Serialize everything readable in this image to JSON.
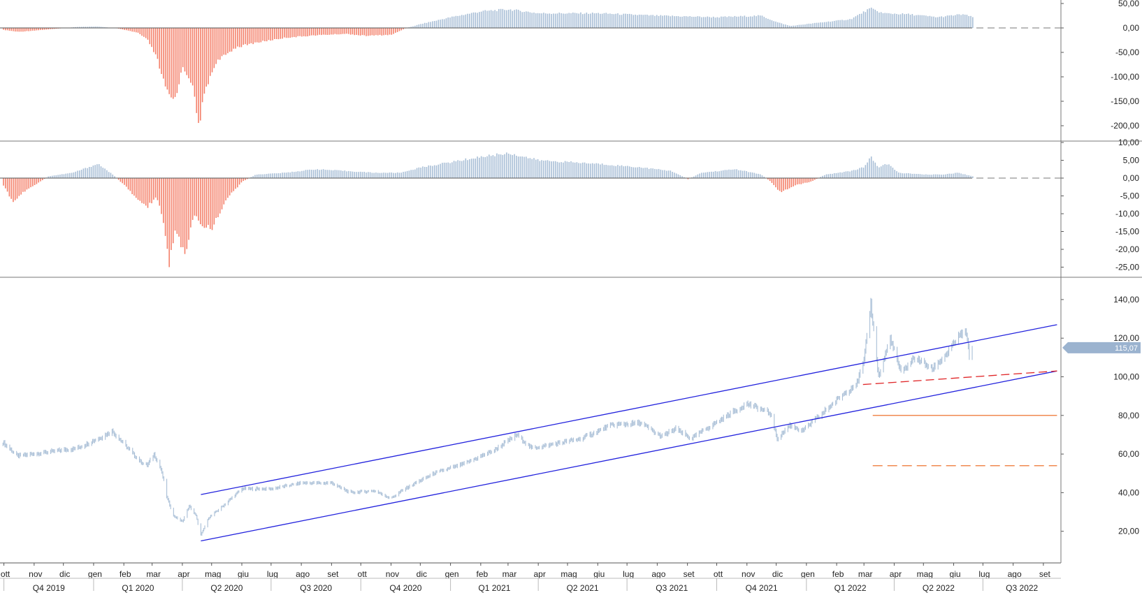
{
  "chart_data": [
    {
      "type": "bar",
      "panel": "indicator-1",
      "y_ticks": [
        "50,00",
        "0,00",
        "-50,00",
        "-100,00",
        "-150,00",
        "-200,00"
      ],
      "ylim": [
        -205,
        55
      ],
      "grid": false,
      "colors": {
        "positive": "#a8bed6",
        "negative": "#f4806a",
        "zero_line": "#555555"
      },
      "keypoints": [
        [
          "2019-09-30",
          -4
        ],
        [
          "2019-10-15",
          -8
        ],
        [
          "2019-11-15",
          -3
        ],
        [
          "2019-12-15",
          2
        ],
        [
          "2020-01-05",
          3
        ],
        [
          "2020-01-25",
          -1
        ],
        [
          "2020-02-15",
          -10
        ],
        [
          "2020-02-25",
          -25
        ],
        [
          "2020-03-05",
          -60
        ],
        [
          "2020-03-15",
          -130
        ],
        [
          "2020-03-23",
          -150
        ],
        [
          "2020-04-01",
          -80
        ],
        [
          "2020-04-10",
          -110
        ],
        [
          "2020-04-17",
          -200
        ],
        [
          "2020-04-25",
          -120
        ],
        [
          "2020-05-05",
          -70
        ],
        [
          "2020-05-25",
          -40
        ],
        [
          "2020-06-15",
          -30
        ],
        [
          "2020-07-15",
          -20
        ],
        [
          "2020-08-15",
          -15
        ],
        [
          "2020-09-15",
          -12
        ],
        [
          "2020-10-05",
          -16
        ],
        [
          "2020-11-01",
          -14
        ],
        [
          "2020-11-15",
          -1
        ],
        [
          "2020-12-01",
          8
        ],
        [
          "2021-01-01",
          22
        ],
        [
          "2021-02-01",
          34
        ],
        [
          "2021-03-01",
          38
        ],
        [
          "2021-04-01",
          30
        ],
        [
          "2021-06-01",
          30
        ],
        [
          "2021-08-01",
          25
        ],
        [
          "2021-10-01",
          22
        ],
        [
          "2021-11-15",
          25
        ],
        [
          "2021-12-01",
          12
        ],
        [
          "2021-12-15",
          4
        ],
        [
          "2022-01-10",
          10
        ],
        [
          "2022-02-15",
          18
        ],
        [
          "2022-03-07",
          40
        ],
        [
          "2022-03-20",
          30
        ],
        [
          "2022-04-15",
          28
        ],
        [
          "2022-05-15",
          22
        ],
        [
          "2022-06-10",
          28
        ],
        [
          "2022-06-20",
          22
        ]
      ],
      "last_date": "2022-06-20"
    },
    {
      "type": "bar",
      "panel": "indicator-2",
      "y_ticks": [
        "10,00",
        "5,00",
        "0,00",
        "-5,00",
        "-10,00",
        "-15,00",
        "-20,00",
        "-25,00"
      ],
      "ylim": [
        -26,
        11
      ],
      "grid": false,
      "colors": {
        "positive": "#a8bed6",
        "negative": "#f4806a",
        "zero_line": "#555555"
      },
      "keypoints": [
        [
          "2019-09-30",
          -2
        ],
        [
          "2019-10-10",
          -7
        ],
        [
          "2019-10-20",
          -4
        ],
        [
          "2019-11-01",
          -2
        ],
        [
          "2019-11-15",
          0.5
        ],
        [
          "2019-12-10",
          1.5
        ],
        [
          "2020-01-05",
          4
        ],
        [
          "2020-01-20",
          1
        ],
        [
          "2020-02-01",
          -2
        ],
        [
          "2020-02-15",
          -6
        ],
        [
          "2020-02-25",
          -8
        ],
        [
          "2020-03-05",
          -5
        ],
        [
          "2020-03-12",
          -12
        ],
        [
          "2020-03-18",
          -24
        ],
        [
          "2020-03-25",
          -14
        ],
        [
          "2020-04-03",
          -22
        ],
        [
          "2020-04-12",
          -10
        ],
        [
          "2020-04-20",
          -13
        ],
        [
          "2020-05-01",
          -14
        ],
        [
          "2020-05-15",
          -6
        ],
        [
          "2020-06-01",
          -1
        ],
        [
          "2020-06-15",
          1
        ],
        [
          "2020-07-15",
          1.5
        ],
        [
          "2020-08-15",
          2.5
        ],
        [
          "2020-09-15",
          2
        ],
        [
          "2020-10-15",
          1.5
        ],
        [
          "2020-11-10",
          1.5
        ],
        [
          "2020-12-01",
          3
        ],
        [
          "2021-01-01",
          4.5
        ],
        [
          "2021-02-01",
          6
        ],
        [
          "2021-03-01",
          7
        ],
        [
          "2021-04-01",
          5
        ],
        [
          "2021-06-01",
          4
        ],
        [
          "2021-07-15",
          3
        ],
        [
          "2021-08-15",
          2
        ],
        [
          "2021-09-01",
          -0.3
        ],
        [
          "2021-09-15",
          1.5
        ],
        [
          "2021-10-20",
          2.5
        ],
        [
          "2021-11-15",
          1
        ],
        [
          "2021-11-25",
          -1
        ],
        [
          "2021-12-05",
          -4
        ],
        [
          "2021-12-20",
          -2
        ],
        [
          "2022-01-05",
          -1
        ],
        [
          "2022-01-20",
          1
        ],
        [
          "2022-02-15",
          2
        ],
        [
          "2022-02-28",
          3
        ],
        [
          "2022-03-08",
          6
        ],
        [
          "2022-03-15",
          3
        ],
        [
          "2022-03-25",
          4
        ],
        [
          "2022-04-05",
          1.5
        ],
        [
          "2022-05-01",
          1
        ],
        [
          "2022-05-20",
          1
        ],
        [
          "2022-06-05",
          1.5
        ],
        [
          "2022-06-20",
          0.5
        ]
      ],
      "last_date": "2022-06-20"
    },
    {
      "type": "line",
      "panel": "price",
      "y_ticks": [
        "140,00",
        "120,00",
        "100,00",
        "80,00",
        "60,00",
        "40,00",
        "20,00"
      ],
      "ylim": [
        3,
        155
      ],
      "grid": false,
      "last_price_label": "115,07",
      "last_price": 115.07,
      "colors": {
        "price": "#a8bed6",
        "channel": "#2222dd",
        "support": "#e0282a",
        "level": "#f08a50",
        "badge": "#9bb3cf"
      },
      "keypoints": [
        [
          "2019-09-30",
          66
        ],
        [
          "2019-10-15",
          59
        ],
        [
          "2019-11-15",
          61
        ],
        [
          "2019-12-15",
          63
        ],
        [
          "2020-01-10",
          69
        ],
        [
          "2020-01-20",
          72
        ],
        [
          "2020-02-05",
          63
        ],
        [
          "2020-02-18",
          56
        ],
        [
          "2020-02-25",
          54
        ],
        [
          "2020-03-03",
          60
        ],
        [
          "2020-03-10",
          52
        ],
        [
          "2020-03-13",
          46
        ],
        [
          "2020-03-16",
          38
        ],
        [
          "2020-03-23",
          28
        ],
        [
          "2020-04-01",
          25
        ],
        [
          "2020-04-08",
          33
        ],
        [
          "2020-04-15",
          28
        ],
        [
          "2020-04-20",
          18
        ],
        [
          "2020-04-28",
          27
        ],
        [
          "2020-05-10",
          32
        ],
        [
          "2020-06-01",
          42
        ],
        [
          "2020-07-01",
          42
        ],
        [
          "2020-08-01",
          45
        ],
        [
          "2020-09-01",
          45
        ],
        [
          "2020-09-20",
          40
        ],
        [
          "2020-10-15",
          41
        ],
        [
          "2020-11-01",
          37
        ],
        [
          "2020-11-15",
          42
        ],
        [
          "2020-12-15",
          50
        ],
        [
          "2021-01-15",
          55
        ],
        [
          "2021-02-15",
          62
        ],
        [
          "2021-03-10",
          70
        ],
        [
          "2021-03-25",
          63
        ],
        [
          "2021-04-15",
          65
        ],
        [
          "2021-05-15",
          68
        ],
        [
          "2021-06-15",
          75
        ],
        [
          "2021-07-15",
          76
        ],
        [
          "2021-08-05",
          69
        ],
        [
          "2021-08-20",
          73
        ],
        [
          "2021-09-05",
          68
        ],
        [
          "2021-09-20",
          73
        ],
        [
          "2021-10-15",
          81
        ],
        [
          "2021-11-01",
          86
        ],
        [
          "2021-11-25",
          81
        ],
        [
          "2021-12-02",
          68
        ],
        [
          "2021-12-15",
          75
        ],
        [
          "2021-12-28",
          72
        ],
        [
          "2022-01-15",
          80
        ],
        [
          "2022-02-01",
          88
        ],
        [
          "2022-02-22",
          97
        ],
        [
          "2022-03-01",
          108
        ],
        [
          "2022-03-08",
          138
        ],
        [
          "2022-03-16",
          100
        ],
        [
          "2022-03-28",
          120
        ],
        [
          "2022-04-08",
          102
        ],
        [
          "2022-04-22",
          110
        ],
        [
          "2022-05-10",
          104
        ],
        [
          "2022-05-25",
          112
        ],
        [
          "2022-06-08",
          122
        ],
        [
          "2022-06-14",
          123
        ],
        [
          "2022-06-17",
          110
        ],
        [
          "2022-06-20",
          115.07
        ]
      ],
      "overlays": [
        {
          "kind": "channel-upper",
          "from": [
            "2020-04-20",
            39
          ],
          "to": [
            "2022-09-15",
            127
          ]
        },
        {
          "kind": "channel-lower",
          "from": [
            "2020-04-20",
            15
          ],
          "to": [
            "2022-09-15",
            103
          ]
        },
        {
          "kind": "support-dashed",
          "from": [
            "2022-02-28",
            96
          ],
          "to": [
            "2022-09-15",
            103
          ]
        },
        {
          "kind": "level-solid",
          "from": [
            "2022-03-10",
            80
          ],
          "to": [
            "2022-09-15",
            80
          ]
        },
        {
          "kind": "level-dashed",
          "from": [
            "2022-03-10",
            54
          ],
          "to": [
            "2022-09-15",
            54
          ]
        }
      ],
      "last_date": "2022-06-20"
    }
  ],
  "x_axis": {
    "start": "2019-09-27",
    "end": "2022-09-19",
    "months": [
      {
        "label": "ott",
        "date": "2019-10-01"
      },
      {
        "label": "nov",
        "date": "2019-11-01"
      },
      {
        "label": "dic",
        "date": "2019-12-01"
      },
      {
        "label": "gen",
        "date": "2020-01-01"
      },
      {
        "label": "feb",
        "date": "2020-02-01"
      },
      {
        "label": "mar",
        "date": "2020-03-01"
      },
      {
        "label": "apr",
        "date": "2020-04-01"
      },
      {
        "label": "mag",
        "date": "2020-05-01"
      },
      {
        "label": "giu",
        "date": "2020-06-01"
      },
      {
        "label": "lug",
        "date": "2020-07-01"
      },
      {
        "label": "ago",
        "date": "2020-08-01"
      },
      {
        "label": "set",
        "date": "2020-09-01"
      },
      {
        "label": "ott",
        "date": "2020-10-01"
      },
      {
        "label": "nov",
        "date": "2020-11-01"
      },
      {
        "label": "dic",
        "date": "2020-12-01"
      },
      {
        "label": "gen",
        "date": "2021-01-01"
      },
      {
        "label": "feb",
        "date": "2021-02-01"
      },
      {
        "label": "mar",
        "date": "2021-03-01"
      },
      {
        "label": "apr",
        "date": "2021-04-01"
      },
      {
        "label": "mag",
        "date": "2021-05-01"
      },
      {
        "label": "giu",
        "date": "2021-06-01"
      },
      {
        "label": "lug",
        "date": "2021-07-01"
      },
      {
        "label": "ago",
        "date": "2021-08-01"
      },
      {
        "label": "set",
        "date": "2021-09-01"
      },
      {
        "label": "ott",
        "date": "2021-10-01"
      },
      {
        "label": "nov",
        "date": "2021-11-01"
      },
      {
        "label": "dic",
        "date": "2021-12-01"
      },
      {
        "label": "gen",
        "date": "2022-01-01"
      },
      {
        "label": "feb",
        "date": "2022-02-01"
      },
      {
        "label": "mar",
        "date": "2022-03-01"
      },
      {
        "label": "apr",
        "date": "2022-04-01"
      },
      {
        "label": "mag",
        "date": "2022-05-01"
      },
      {
        "label": "giu",
        "date": "2022-06-01"
      },
      {
        "label": "lug",
        "date": "2022-07-01"
      },
      {
        "label": "ago",
        "date": "2022-08-01"
      },
      {
        "label": "set",
        "date": "2022-09-01"
      }
    ],
    "quarters": [
      {
        "label": "Q4 2019",
        "start": "2019-10-01",
        "end": "2020-01-01"
      },
      {
        "label": "Q1 2020",
        "start": "2020-01-01",
        "end": "2020-04-01"
      },
      {
        "label": "Q2 2020",
        "start": "2020-04-01",
        "end": "2020-07-01"
      },
      {
        "label": "Q3 2020",
        "start": "2020-07-01",
        "end": "2020-10-01"
      },
      {
        "label": "Q4 2020",
        "start": "2020-10-01",
        "end": "2021-01-01"
      },
      {
        "label": "Q1 2021",
        "start": "2021-01-01",
        "end": "2021-04-01"
      },
      {
        "label": "Q2 2021",
        "start": "2021-04-01",
        "end": "2021-07-01"
      },
      {
        "label": "Q3 2021",
        "start": "2021-07-01",
        "end": "2021-10-01"
      },
      {
        "label": "Q4 2021",
        "start": "2021-10-01",
        "end": "2022-01-01"
      },
      {
        "label": "Q1 2022",
        "start": "2022-01-01",
        "end": "2022-04-01"
      },
      {
        "label": "Q2 2022",
        "start": "2022-04-01",
        "end": "2022-07-01"
      },
      {
        "label": "Q3 2022",
        "start": "2022-07-01",
        "end": "2022-09-19"
      }
    ]
  }
}
